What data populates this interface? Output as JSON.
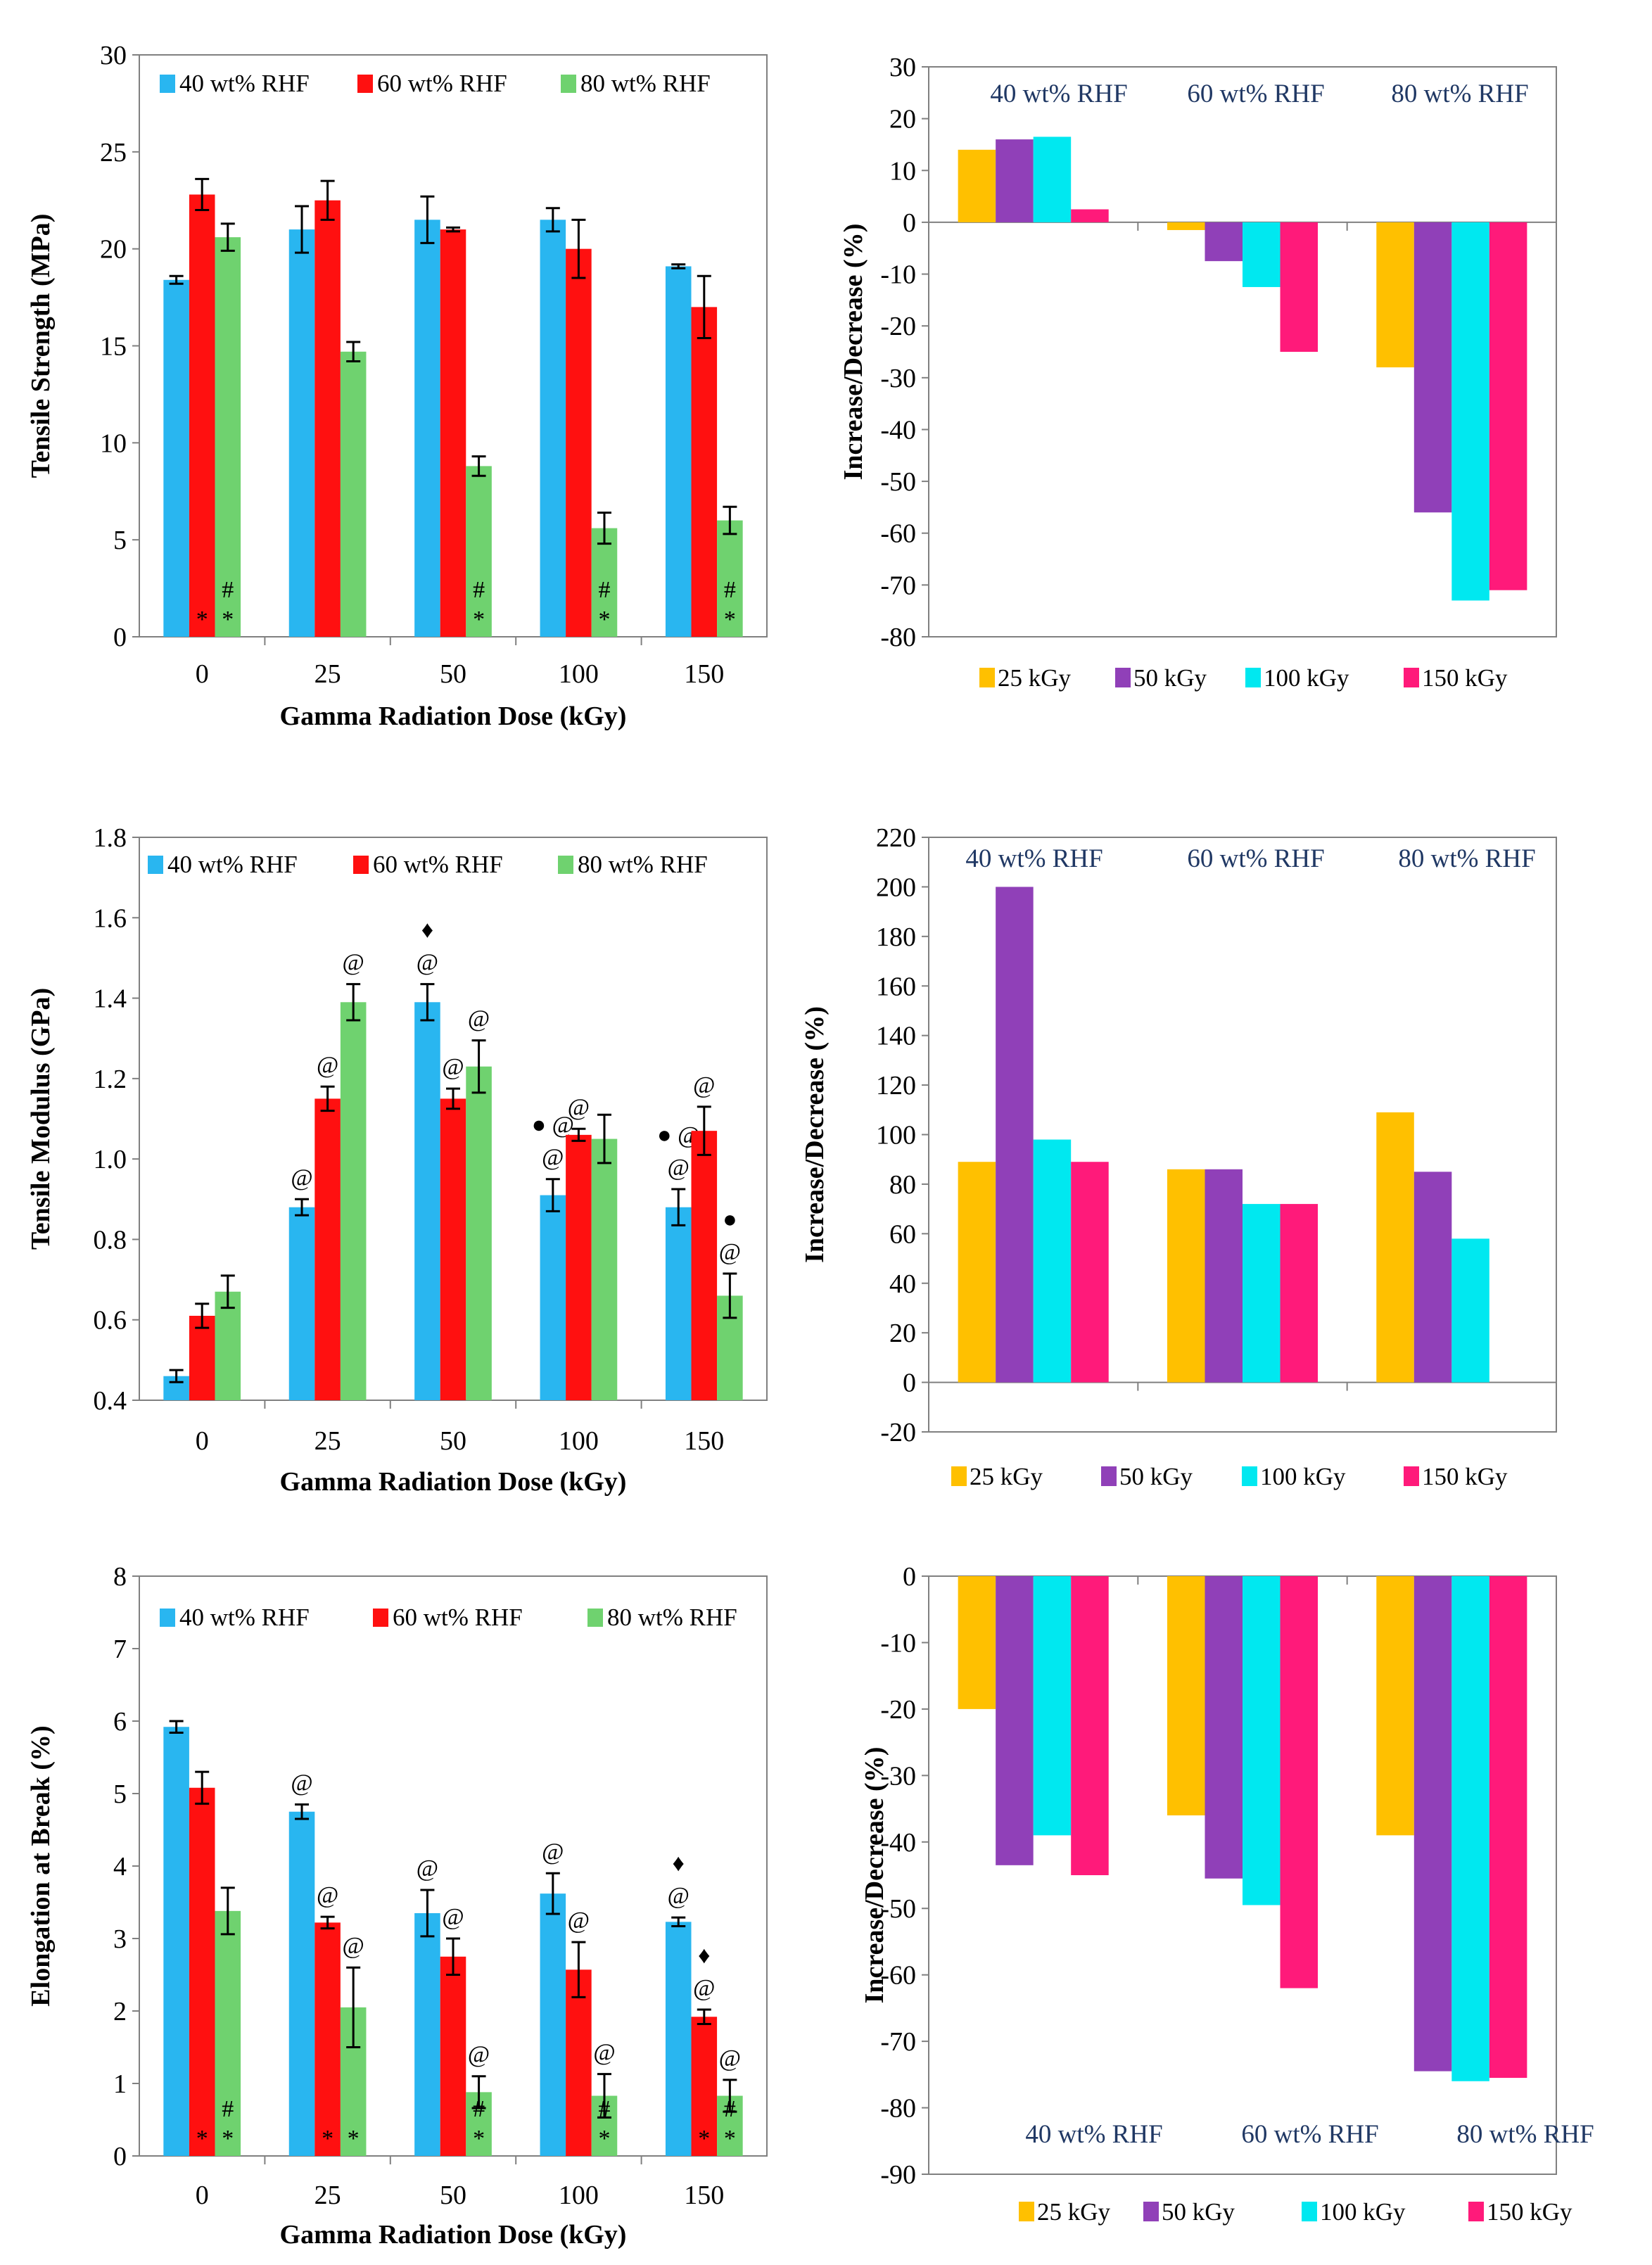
{
  "chart_data": [
    {
      "id": "ts-abs",
      "type": "bar",
      "ylabel": "Tensile Strength (MPa)",
      "xlabel": "Gamma Radiation Dose (kGy)",
      "ylim": [
        0,
        30
      ],
      "yticks": [
        0,
        5,
        10,
        15,
        20,
        25,
        30
      ],
      "categories": [
        "0",
        "25",
        "50",
        "100",
        "150"
      ],
      "legend_position": "top",
      "series": [
        {
          "name": "40 wt% RHF",
          "color": "#29B6F0",
          "values": [
            18.4,
            21.0,
            21.5,
            21.5,
            19.1
          ],
          "errors": [
            0.2,
            1.2,
            1.2,
            0.6,
            0.1
          ],
          "annotations": [
            [],
            [],
            [],
            [],
            []
          ]
        },
        {
          "name": "60 wt% RHF",
          "color": "#FF1010",
          "values": [
            22.8,
            22.5,
            21.0,
            20.0,
            17.0
          ],
          "errors": [
            0.8,
            1.0,
            0.1,
            1.5,
            1.6
          ],
          "annotations": [
            [
              "*"
            ],
            [],
            [],
            [],
            []
          ]
        },
        {
          "name": "80 wt% RHF",
          "color": "#6FD26F",
          "values": [
            20.6,
            14.7,
            8.8,
            5.6,
            6.0
          ],
          "errors": [
            0.7,
            0.5,
            0.5,
            0.8,
            0.7
          ],
          "annotations": [
            [
              "#",
              "*"
            ],
            [],
            [
              "#",
              "*"
            ],
            [
              "#",
              "*"
            ],
            [
              "#",
              "*"
            ]
          ]
        }
      ]
    },
    {
      "id": "ts-pct",
      "type": "bar",
      "ylabel": "Increase/Decrease (%)",
      "ylim": [
        -80,
        30
      ],
      "yticks": [
        -80,
        -70,
        -60,
        -50,
        -40,
        -30,
        -20,
        -10,
        0,
        10,
        20,
        30
      ],
      "groups": [
        "40 wt% RHF",
        "60 wt% RHF",
        "80 wt% RHF"
      ],
      "legend_position": "bottom",
      "series": [
        {
          "name": "25 kGy",
          "color": "#FFC000",
          "values": [
            14,
            -1.5,
            -28
          ]
        },
        {
          "name": "50 kGy",
          "color": "#9040B8",
          "values": [
            16,
            -7.5,
            -56
          ]
        },
        {
          "name": "100 kGy",
          "color": "#00E8F0",
          "values": [
            16.5,
            -12.5,
            -73
          ]
        },
        {
          "name": "150 kGy",
          "color": "#FF1A7A",
          "values": [
            2.5,
            -25,
            -71
          ]
        }
      ]
    },
    {
      "id": "tm-abs",
      "type": "bar",
      "ylabel": "Tensile Modulus (GPa)",
      "xlabel": "Gamma Radiation Dose (kGy)",
      "ylim": [
        0.4,
        1.8
      ],
      "yticks": [
        "0.4",
        "0.6",
        "0.8",
        "1.0",
        "1.2",
        "1.4",
        "1.6",
        "1.8"
      ],
      "categories": [
        "0",
        "25",
        "50",
        "100",
        "150"
      ],
      "legend_position": "top",
      "series": [
        {
          "name": "40 wt% RHF",
          "color": "#29B6F0",
          "values": [
            0.46,
            0.88,
            1.39,
            0.91,
            0.88
          ],
          "errors": [
            0.015,
            0.02,
            0.045,
            0.04,
            0.045
          ],
          "annotations": [
            [],
            [
              "@"
            ],
            [
              "♦",
              "@"
            ],
            [
              "● @",
              "@"
            ],
            [
              "● @",
              "@"
            ]
          ]
        },
        {
          "name": "60 wt% RHF",
          "color": "#FF1010",
          "values": [
            0.61,
            1.15,
            1.15,
            1.06,
            1.07
          ],
          "errors": [
            0.03,
            0.03,
            0.025,
            0.015,
            0.06
          ],
          "annotations": [
            [],
            [
              "@"
            ],
            [
              "@"
            ],
            [
              "@"
            ],
            [
              "@"
            ]
          ]
        },
        {
          "name": "80 wt% RHF",
          "color": "#6FD26F",
          "values": [
            0.67,
            1.39,
            1.23,
            1.05,
            0.66
          ],
          "errors": [
            0.04,
            0.045,
            0.065,
            0.06,
            0.055
          ],
          "annotations": [
            [],
            [
              "@"
            ],
            [
              "@"
            ],
            [],
            [
              "●",
              "@"
            ]
          ]
        }
      ]
    },
    {
      "id": "tm-pct",
      "type": "bar",
      "ylabel": "Increase/Decrease (%)",
      "ylim": [
        -20,
        220
      ],
      "yticks": [
        -20,
        0,
        20,
        40,
        60,
        80,
        100,
        120,
        140,
        160,
        180,
        200,
        220
      ],
      "groups": [
        "40 wt% RHF",
        "60 wt% RHF",
        "80 wt% RHF"
      ],
      "legend_position": "bottom",
      "series": [
        {
          "name": "25 kGy",
          "color": "#FFC000",
          "values": [
            89,
            86,
            109
          ]
        },
        {
          "name": "50 kGy",
          "color": "#9040B8",
          "values": [
            200,
            86,
            85
          ]
        },
        {
          "name": "100 kGy",
          "color": "#00E8F0",
          "values": [
            98,
            72,
            58
          ]
        },
        {
          "name": "150 kGy",
          "color": "#FF1A7A",
          "values": [
            89,
            72,
            null
          ]
        }
      ]
    },
    {
      "id": "eb-abs",
      "type": "bar",
      "ylabel": "Elongation at Break (%)",
      "xlabel": "Gamma Radiation Dose (kGy)",
      "ylim": [
        0,
        8
      ],
      "yticks": [
        0,
        1,
        2,
        3,
        4,
        5,
        6,
        7,
        8
      ],
      "categories": [
        "0",
        "25",
        "50",
        "100",
        "150"
      ],
      "legend_position": "top",
      "series": [
        {
          "name": "40 wt% RHF",
          "color": "#29B6F0",
          "values": [
            5.92,
            4.75,
            3.35,
            3.62,
            3.23
          ],
          "errors": [
            0.08,
            0.1,
            0.32,
            0.28,
            0.06
          ],
          "annotations": [
            [],
            [
              "@"
            ],
            [
              "@"
            ],
            [
              "@"
            ],
            [
              "♦",
              "@"
            ]
          ]
        },
        {
          "name": "60 wt% RHF",
          "color": "#FF1010",
          "values": [
            5.08,
            3.22,
            2.75,
            2.57,
            1.92
          ],
          "errors": [
            0.22,
            0.08,
            0.25,
            0.38,
            0.1
          ],
          "annotations": [
            [
              "*"
            ],
            [
              "@",
              "*"
            ],
            [
              "@"
            ],
            [
              "@"
            ],
            [
              "♦",
              "@",
              "*"
            ]
          ]
        },
        {
          "name": "80 wt% RHF",
          "color": "#6FD26F",
          "values": [
            3.38,
            2.05,
            0.88,
            0.83,
            0.83
          ],
          "errors": [
            0.32,
            0.55,
            0.22,
            0.3,
            0.22
          ],
          "annotations": [
            [
              "#",
              "*"
            ],
            [
              "@",
              "*"
            ],
            [
              "@",
              "#",
              "*"
            ],
            [
              "@",
              "#",
              "*"
            ],
            [
              "@",
              "#",
              "*"
            ]
          ]
        }
      ]
    },
    {
      "id": "eb-pct",
      "type": "bar",
      "ylabel": "Increase/Decrease (%)",
      "ylim": [
        -90,
        0
      ],
      "yticks": [
        -90,
        -80,
        -70,
        -60,
        -50,
        -40,
        -30,
        -20,
        -10,
        0
      ],
      "groups": [
        "40 wt% RHF",
        "60 wt% RHF",
        "80 wt% RHF"
      ],
      "legend_position": "bottom",
      "series": [
        {
          "name": "25 kGy",
          "color": "#FFC000",
          "values": [
            -20,
            -36,
            -39
          ]
        },
        {
          "name": "50 kGy",
          "color": "#9040B8",
          "values": [
            -43.5,
            -45.5,
            -74.5
          ]
        },
        {
          "name": "100 kGy",
          "color": "#00E8F0",
          "values": [
            -39,
            -49.5,
            -76
          ]
        },
        {
          "name": "150 kGy",
          "color": "#FF1A7A",
          "values": [
            -45,
            -62,
            -75.5
          ]
        }
      ]
    }
  ]
}
